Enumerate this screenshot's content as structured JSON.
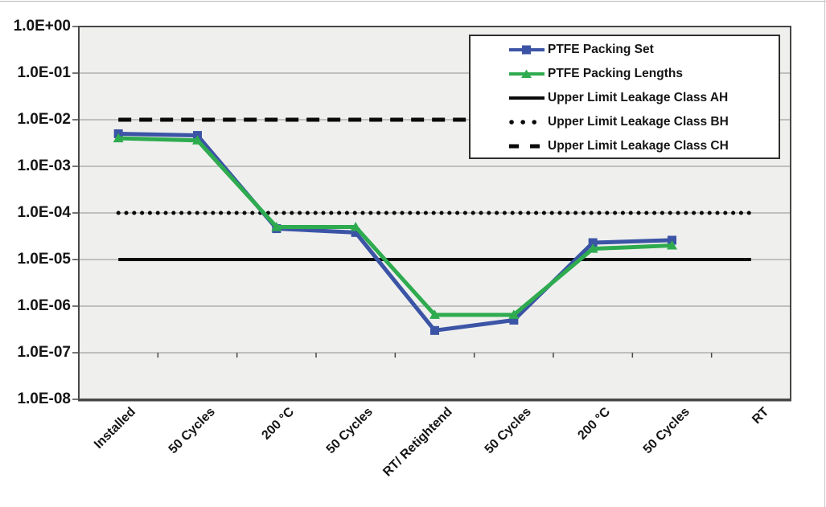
{
  "chart_data": {
    "type": "line",
    "title": "",
    "x_axis_label": "",
    "y_axis_label": "",
    "categories": [
      "Installed",
      "50 Cycles",
      "200 °C",
      "50 Cycles",
      "RT/ Retightend",
      "50 Cycles",
      "200 °C",
      "50 Cycles",
      "RT"
    ],
    "y_axis": {
      "scale": "log",
      "max": 1.0,
      "min": 1e-08,
      "tick_labels": [
        "1.0E+00",
        "1.0E-01",
        "1.0E-02",
        "1.0E-03",
        "1.0E-04",
        "1.0E-05",
        "1.0E-06",
        "1.0E-07",
        "1.0E-08"
      ]
    },
    "grid": true,
    "plot_background": "#efefee",
    "gridline_color": "#8f8f8f",
    "axis_color": "#474747",
    "category_axis_note": "small category boundary tick marks are drawn on the 1.0E-07 gridline",
    "series": [
      {
        "name": "PTFE Packing Set",
        "color": "#3b54a5",
        "marker": "square",
        "values": [
          0.005,
          0.0046,
          4.6e-05,
          3.8e-05,
          3e-07,
          5e-07,
          2.3e-05,
          2.6e-05,
          null
        ]
      },
      {
        "name": "PTFE Packing Lengths",
        "color": "#2eab4f",
        "marker": "triangle",
        "values": [
          0.004,
          0.0036,
          5e-05,
          5e-05,
          6.5e-07,
          6.5e-07,
          1.7e-05,
          2e-05,
          null
        ]
      }
    ],
    "limit_lines": [
      {
        "name": "Upper Limit Leakage Class AH",
        "value": 1e-05,
        "style": "solid",
        "color": "#0a0a0a"
      },
      {
        "name": "Upper Limit Leakage Class BH",
        "value": 0.0001,
        "style": "dotted",
        "color": "#0a0a0a"
      },
      {
        "name": "Upper Limit Leakage Class CH",
        "value": 0.01,
        "style": "dashed",
        "color": "#0a0a0a"
      }
    ],
    "legend": {
      "position": "top-right",
      "entries": [
        {
          "label": "PTFE Packing Set",
          "swatch": "blue-square-line"
        },
        {
          "label": "PTFE Packing Lengths",
          "swatch": "green-triangle-line"
        },
        {
          "label": "Upper Limit Leakage Class AH",
          "swatch": "solid-line"
        },
        {
          "label": "Upper Limit Leakage Class BH",
          "swatch": "dotted-line"
        },
        {
          "label": "Upper Limit Leakage Class CH",
          "swatch": "dashed-line"
        }
      ]
    }
  }
}
